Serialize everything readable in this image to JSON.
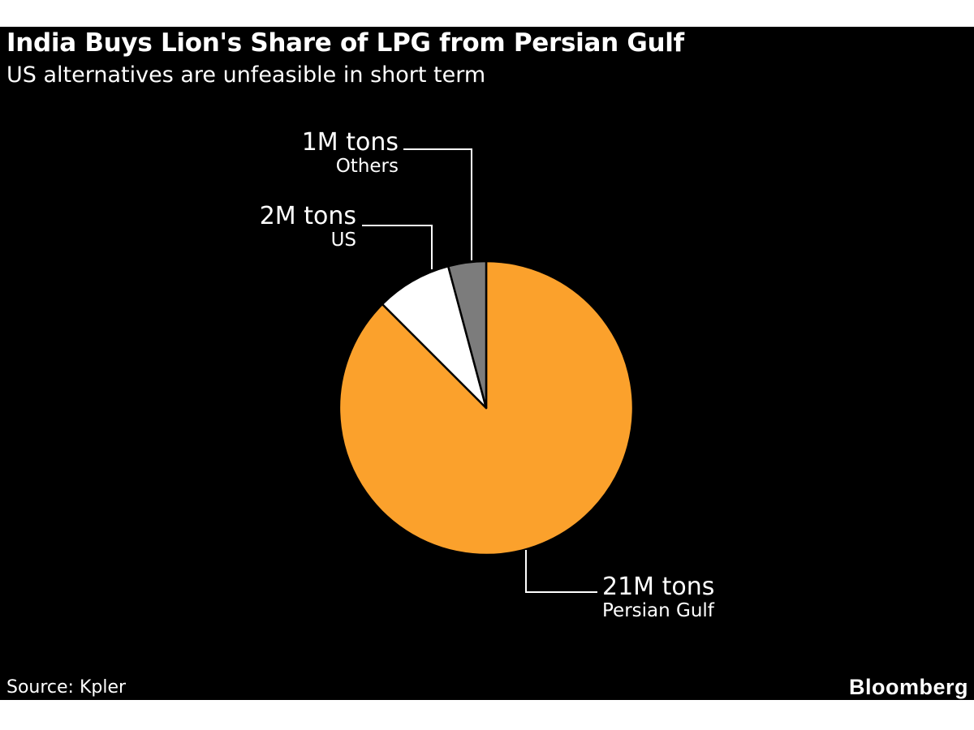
{
  "header": {
    "title": "India Buys Lion's Share of LPG from Persian Gulf",
    "subtitle": "US alternatives are unfeasible in short term"
  },
  "footer": {
    "source": "Source: Kpler",
    "brand": "Bloomberg"
  },
  "colors": {
    "page_background": "#FFFFFF",
    "card_background": "#000000",
    "text": "#FFFFFF",
    "slice_divider": "#000000",
    "accent_orange": "#FBA12C"
  },
  "chart_data": {
    "type": "pie",
    "title": "India Buys Lion's Share of LPG from Persian Gulf",
    "subtitle": "US alternatives are unfeasible in short term",
    "unit": "M tons",
    "total": 24,
    "start_angle_deg": 0,
    "direction": "clockwise",
    "legend_position": "callout-labels",
    "slices": [
      {
        "label": "Persian Gulf",
        "value": 21,
        "value_label": "21M tons",
        "color": "#FBA12C"
      },
      {
        "label": "US",
        "value": 2,
        "value_label": "2M tons",
        "color": "#FFFFFF"
      },
      {
        "label": "Others",
        "value": 1,
        "value_label": "1M tons",
        "color": "#7C7C7C"
      }
    ]
  }
}
